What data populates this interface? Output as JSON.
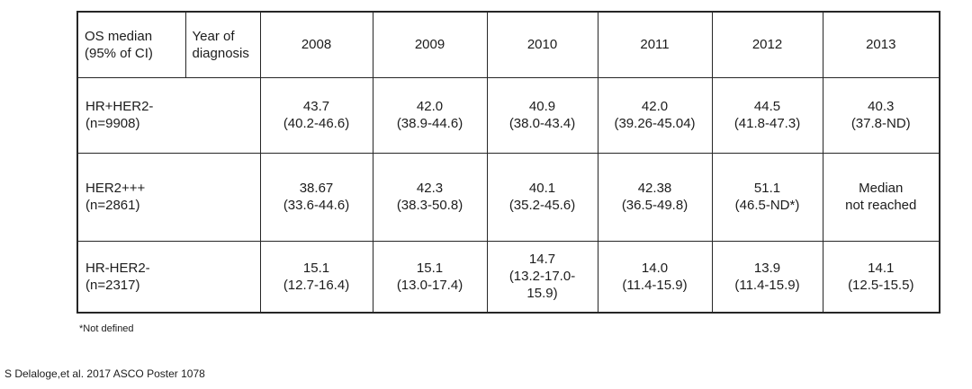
{
  "table": {
    "header": {
      "col1": "OS median\n(95% of CI)",
      "col2": "Year of\ndiagnosis",
      "years": [
        "2008",
        "2009",
        "2010",
        "2011",
        "2012",
        "2013"
      ]
    },
    "rows": [
      {
        "label": "HR+HER2-\n(n=9908)",
        "cells": [
          "43.7\n(40.2-46.6)",
          "42.0\n(38.9-44.6)",
          "40.9\n(38.0-43.4)",
          "42.0\n(39.26-45.04)",
          "44.5\n(41.8-47.3)",
          "40.3\n(37.8-ND)"
        ]
      },
      {
        "label": "HER2+++\n(n=2861)",
        "cells": [
          "38.67\n(33.6-44.6)",
          "42.3\n(38.3-50.8)",
          "40.1\n(35.2-45.6)",
          "42.38\n(36.5-49.8)",
          "51.1\n(46.5-ND*)",
          "Median\nnot reached"
        ]
      },
      {
        "label": "HR-HER2-\n(n=2317)",
        "cells": [
          "15.1\n(12.7-16.4)",
          "15.1\n(13.0-17.4)",
          "14.7\n(13.2-17.0-\n15.9)",
          "14.0\n(11.4-15.9)",
          "13.9\n(11.4-15.9)",
          "14.1\n(12.5-15.5)"
        ]
      }
    ]
  },
  "footnotes": {
    "not_defined": "*Not defined",
    "citation": "S Delaloge,et al. 2017 ASCO Poster 1078"
  },
  "colors": {
    "text": "#1c1c1c",
    "border": "#262626",
    "background": "#ffffff"
  },
  "chart_data": {
    "type": "table",
    "title": "OS median (95% of CI) by year of diagnosis",
    "columns": [
      "OS median (95% of CI)",
      "2008",
      "2009",
      "2010",
      "2011",
      "2012",
      "2013"
    ],
    "rows": [
      {
        "subtype": "HR+HER2-",
        "n": 9908,
        "values": [
          {
            "year": 2008,
            "median": "43.7",
            "ci": "40.2-46.6"
          },
          {
            "year": 2009,
            "median": "42.0",
            "ci": "38.9-44.6"
          },
          {
            "year": 2010,
            "median": "40.9",
            "ci": "38.0-43.4"
          },
          {
            "year": 2011,
            "median": "42.0",
            "ci": "39.26-45.04"
          },
          {
            "year": 2012,
            "median": "44.5",
            "ci": "41.8-47.3"
          },
          {
            "year": 2013,
            "median": "40.3",
            "ci": "37.8-ND"
          }
        ]
      },
      {
        "subtype": "HER2+++",
        "n": 2861,
        "values": [
          {
            "year": 2008,
            "median": "38.67",
            "ci": "33.6-44.6"
          },
          {
            "year": 2009,
            "median": "42.3",
            "ci": "38.3-50.8"
          },
          {
            "year": 2010,
            "median": "40.1",
            "ci": "35.2-45.6"
          },
          {
            "year": 2011,
            "median": "42.38",
            "ci": "36.5-49.8"
          },
          {
            "year": 2012,
            "median": "51.1",
            "ci": "46.5-ND*"
          },
          {
            "year": 2013,
            "median": "Median not reached",
            "ci": ""
          }
        ]
      },
      {
        "subtype": "HR-HER2-",
        "n": 2317,
        "values": [
          {
            "year": 2008,
            "median": "15.1",
            "ci": "12.7-16.4"
          },
          {
            "year": 2009,
            "median": "15.1",
            "ci": "13.0-17.4"
          },
          {
            "year": 2010,
            "median": "14.7",
            "ci": "13.2-17.0-15.9"
          },
          {
            "year": 2011,
            "median": "14.0",
            "ci": "11.4-15.9"
          },
          {
            "year": 2012,
            "median": "13.9",
            "ci": "11.4-15.9"
          },
          {
            "year": 2013,
            "median": "14.1",
            "ci": "12.5-15.5"
          }
        ]
      }
    ],
    "footnote": "*Not defined",
    "source": "S Delaloge,et al. 2017 ASCO Poster 1078"
  }
}
